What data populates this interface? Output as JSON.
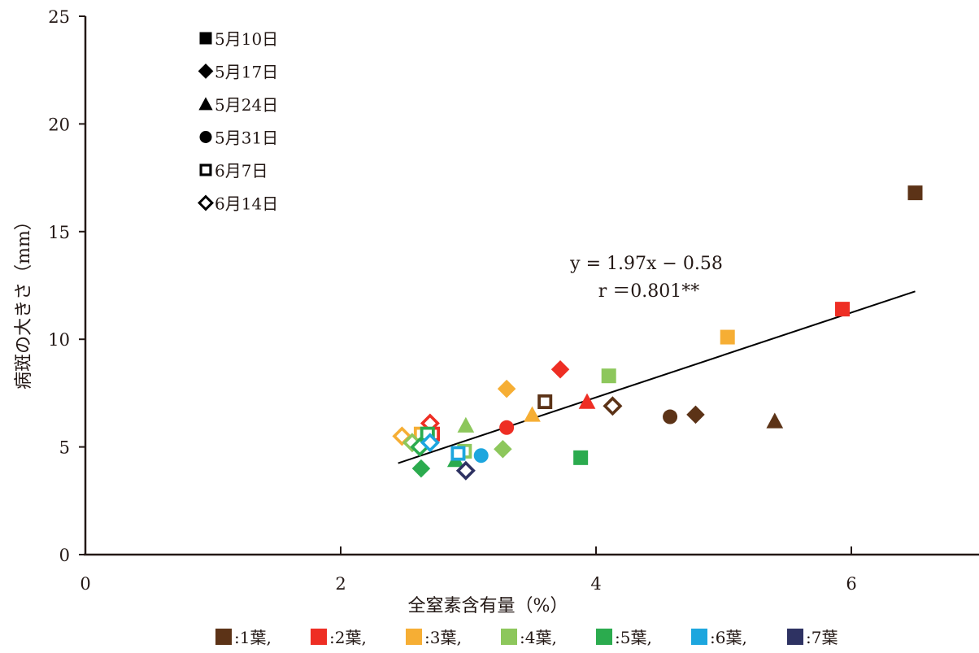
{
  "chart_data": {
    "type": "scatter",
    "title": "",
    "xlabel": "全窒素含有量（%）",
    "ylabel": "病斑の大きさ（mm）",
    "xlim": [
      0,
      7
    ],
    "ylim": [
      0,
      25
    ],
    "x_ticks": [
      "0",
      "2",
      "4",
      "6"
    ],
    "y_ticks": [
      "0",
      "5",
      "10",
      "15",
      "20",
      "25"
    ],
    "grid": false,
    "date_legend": [
      {
        "marker": "square",
        "label": "5月10日"
      },
      {
        "marker": "diamond",
        "label": "5月17日"
      },
      {
        "marker": "triangle",
        "label": "5月24日"
      },
      {
        "marker": "circle",
        "label": "5月31日"
      },
      {
        "marker": "square-open",
        "label": "6月7日"
      },
      {
        "marker": "diamond-open",
        "label": "6月14日"
      }
    ],
    "leaf_legend": [
      {
        "label": ":1葉,",
        "color": "#5c3317"
      },
      {
        "label": ":2葉,",
        "color": "#ee2e24"
      },
      {
        "label": ":3葉,",
        "color": "#f6ae34"
      },
      {
        "label": ":4葉,",
        "color": "#8dc75c"
      },
      {
        "label": ":5葉,",
        "color": "#2bab4e"
      },
      {
        "label": ":6葉,",
        "color": "#1da6de"
      },
      {
        "label": ":7葉",
        "color": "#2e3262"
      }
    ],
    "regression": {
      "equation": "y = 1.97x − 0.58",
      "r_text": "r ＝0.801**",
      "slope": 1.97,
      "intercept": -0.58,
      "x_range": [
        2.45,
        6.5
      ]
    },
    "series": [
      {
        "leaf": 1,
        "color": "#5c3317",
        "points": [
          {
            "x": 6.5,
            "y": 16.8,
            "marker": "square"
          },
          {
            "x": 4.78,
            "y": 6.5,
            "marker": "diamond"
          },
          {
            "x": 5.4,
            "y": 6.2,
            "marker": "triangle"
          },
          {
            "x": 4.58,
            "y": 6.4,
            "marker": "circle"
          },
          {
            "x": 3.6,
            "y": 7.1,
            "marker": "square-open"
          },
          {
            "x": 4.13,
            "y": 6.9,
            "marker": "diamond-open"
          }
        ]
      },
      {
        "leaf": 2,
        "color": "#ee2e24",
        "points": [
          {
            "x": 5.93,
            "y": 11.4,
            "marker": "square"
          },
          {
            "x": 3.72,
            "y": 8.6,
            "marker": "diamond"
          },
          {
            "x": 3.93,
            "y": 7.1,
            "marker": "triangle"
          },
          {
            "x": 3.3,
            "y": 5.9,
            "marker": "circle"
          },
          {
            "x": 2.72,
            "y": 5.6,
            "marker": "square-open"
          },
          {
            "x": 2.7,
            "y": 6.1,
            "marker": "diamond-open"
          }
        ]
      },
      {
        "leaf": 3,
        "color": "#f6ae34",
        "points": [
          {
            "x": 5.03,
            "y": 10.1,
            "marker": "square"
          },
          {
            "x": 3.3,
            "y": 7.7,
            "marker": "diamond"
          },
          {
            "x": 3.5,
            "y": 6.5,
            "marker": "triangle"
          },
          {
            "x": 2.63,
            "y": 5.6,
            "marker": "square-open"
          },
          {
            "x": 2.48,
            "y": 5.5,
            "marker": "diamond-open"
          }
        ]
      },
      {
        "leaf": 4,
        "color": "#8dc75c",
        "points": [
          {
            "x": 4.1,
            "y": 8.3,
            "marker": "square"
          },
          {
            "x": 3.27,
            "y": 4.9,
            "marker": "diamond"
          },
          {
            "x": 2.98,
            "y": 6.0,
            "marker": "triangle"
          },
          {
            "x": 2.97,
            "y": 4.8,
            "marker": "square-open"
          },
          {
            "x": 2.56,
            "y": 5.2,
            "marker": "diamond-open"
          }
        ]
      },
      {
        "leaf": 5,
        "color": "#2bab4e",
        "points": [
          {
            "x": 3.88,
            "y": 4.5,
            "marker": "square"
          },
          {
            "x": 2.63,
            "y": 4.0,
            "marker": "diamond"
          },
          {
            "x": 2.9,
            "y": 4.4,
            "marker": "triangle"
          },
          {
            "x": 2.68,
            "y": 5.6,
            "marker": "square-open"
          },
          {
            "x": 2.62,
            "y": 5.0,
            "marker": "diamond-open"
          }
        ]
      },
      {
        "leaf": 6,
        "color": "#1da6de",
        "points": [
          {
            "x": 3.1,
            "y": 4.6,
            "marker": "circle"
          },
          {
            "x": 2.92,
            "y": 4.7,
            "marker": "square-open"
          },
          {
            "x": 2.7,
            "y": 5.2,
            "marker": "diamond-open"
          }
        ]
      },
      {
        "leaf": 7,
        "color": "#2e3262",
        "points": [
          {
            "x": 2.98,
            "y": 3.9,
            "marker": "diamond-open"
          }
        ]
      }
    ]
  }
}
